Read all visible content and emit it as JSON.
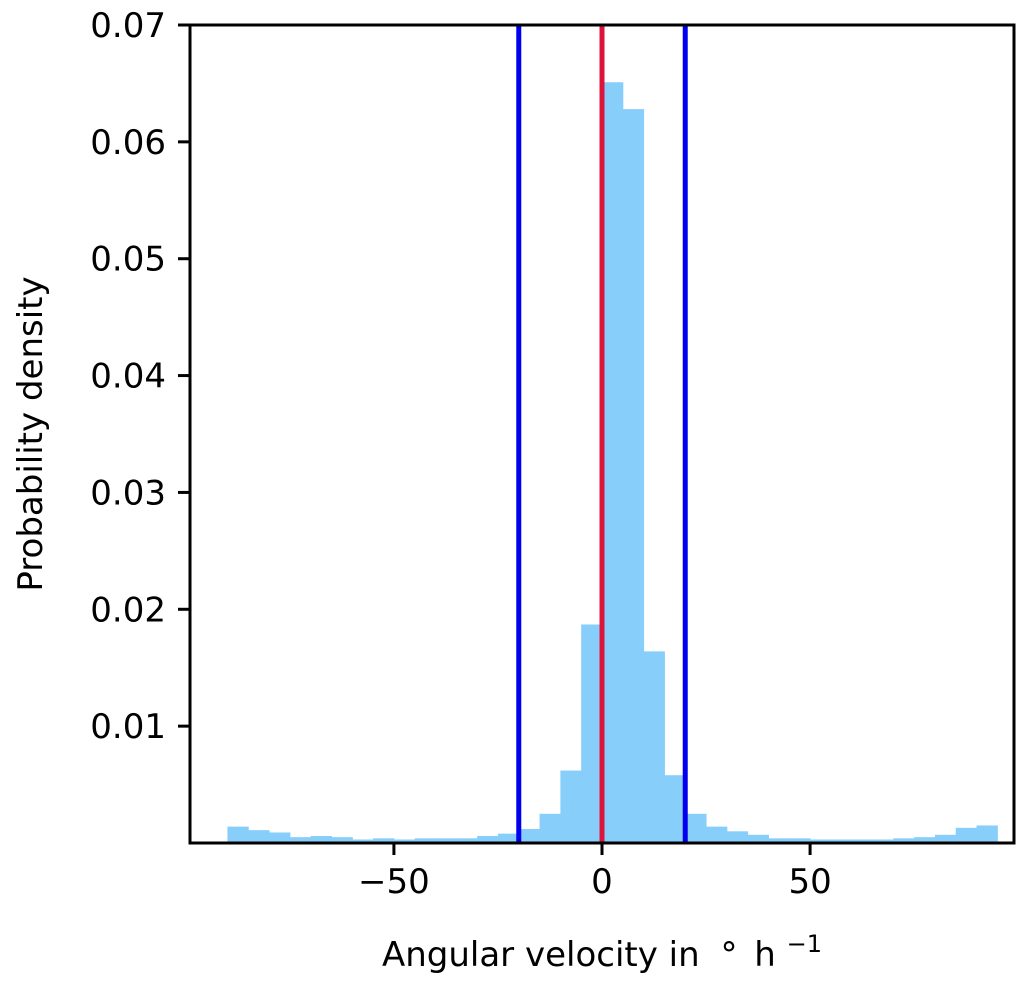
{
  "chart_data": {
    "type": "bar",
    "title": "",
    "xlabel": "Angular velocity in",
    "xlabel_unit": {
      "degree": "°",
      "base": "h",
      "exponent": "−1"
    },
    "ylabel": "Probability density",
    "xlim": [
      -99,
      99
    ],
    "ylim": [
      0,
      0.07
    ],
    "x_ticks": [
      {
        "value": -50,
        "label": "−50"
      },
      {
        "value": 0,
        "label": "0"
      },
      {
        "value": 50,
        "label": "50"
      }
    ],
    "y_ticks": [
      {
        "value": 0.01,
        "label": "0.01"
      },
      {
        "value": 0.02,
        "label": "0.02"
      },
      {
        "value": 0.03,
        "label": "0.03"
      },
      {
        "value": 0.04,
        "label": "0.04"
      },
      {
        "value": 0.05,
        "label": "0.05"
      },
      {
        "value": 0.06,
        "label": "0.06"
      },
      {
        "value": 0.07,
        "label": "0.07"
      }
    ],
    "bins": {
      "start": -90,
      "width": 5,
      "values": [
        0.0014,
        0.0011,
        0.0009,
        0.0005,
        0.0006,
        0.0005,
        0.0003,
        0.0004,
        0.0003,
        0.0004,
        0.0004,
        0.0004,
        0.0006,
        0.0008,
        0.0012,
        0.0025,
        0.0062,
        0.0187,
        0.0651,
        0.0628,
        0.0164,
        0.0058,
        0.0025,
        0.0014,
        0.001,
        0.0007,
        0.0004,
        0.0004,
        0.0003,
        0.0003,
        0.0003,
        0.0003,
        0.0004,
        0.0005,
        0.0007,
        0.0013,
        0.0015
      ]
    },
    "reference_lines": [
      {
        "x": -20,
        "color": "#0000ee"
      },
      {
        "x": 0,
        "color": "#dc143c"
      },
      {
        "x": 20,
        "color": "#0000ee"
      }
    ],
    "colors": {
      "bars": "#87cefa",
      "axes": "#000000",
      "background": "#ffffff"
    },
    "grid": false,
    "legend": "none"
  }
}
